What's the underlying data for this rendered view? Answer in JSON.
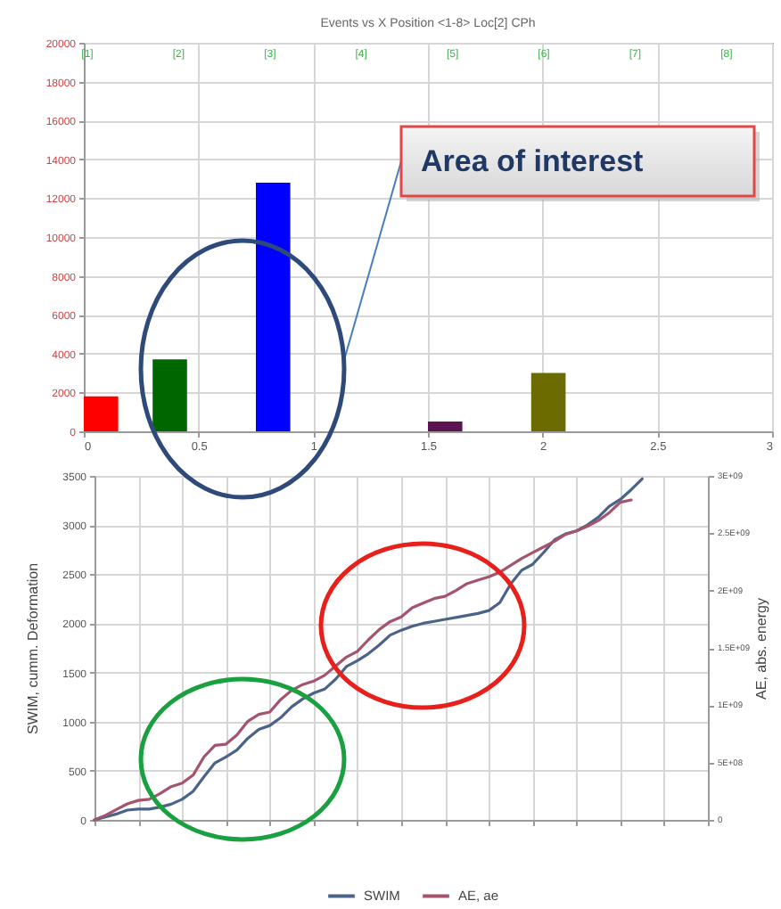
{
  "chart_data": [
    {
      "type": "histogram",
      "title": "Events vs X Position <1-8> Loc[2] CPh",
      "bins": [
        0,
        0.15,
        0.3,
        0.45,
        0.75,
        0.9,
        1.5,
        1.65,
        1.95,
        2.1
      ],
      "values": [
        1800,
        null,
        3700,
        null,
        12800,
        null,
        500,
        null,
        3000
      ],
      "colors": [
        "#ff0000",
        null,
        "#006600",
        null,
        "#0000ff",
        null,
        "#5c1450",
        null,
        "#6b6b00"
      ],
      "xlim": [
        0,
        3
      ],
      "xticks": [
        0,
        0.5,
        1,
        1.5,
        2,
        2.5,
        3
      ],
      "ylim": [
        0,
        20000
      ],
      "yticks": [
        0,
        2000,
        4000,
        6000,
        8000,
        10000,
        12000,
        14000,
        16000,
        18000,
        20000
      ],
      "grid": true,
      "annotations": [
        "Area of interest",
        "[1]",
        "[2]",
        "[3]",
        "[4]",
        "[5]",
        "[6]",
        "[7]",
        "[8]"
      ]
    },
    {
      "type": "line",
      "ylabel": "SWIM, cumm. Deformation",
      "y2label": "AE, abs. energy",
      "categories": [
        null,
        null,
        null,
        null,
        null,
        null,
        null,
        null,
        null,
        null,
        null,
        null,
        null,
        null,
        null,
        null,
        null,
        null,
        null,
        null,
        null,
        null,
        null,
        null,
        null,
        null,
        null,
        null,
        null,
        null,
        null,
        null,
        null,
        null,
        null,
        null,
        null,
        null,
        null,
        null,
        null,
        null,
        null,
        null,
        null,
        null,
        null,
        null,
        null,
        null,
        null,
        null,
        null,
        null,
        null,
        null,
        null
      ],
      "ylim": [
        0,
        3500
      ],
      "yticks": [
        0,
        500,
        1000,
        1500,
        2000,
        2500,
        3000,
        3500
      ],
      "y2lim": [
        0,
        3000000000.0
      ],
      "y2ticks": [
        0,
        {
          "value": 500000000.0,
          "label": "5E+08"
        },
        {
          "value": 1000000000.0,
          "label": "1E+09"
        },
        {
          "value": 1500000000.0,
          "label": "1.5E+09"
        },
        {
          "value": 2000000000.0,
          "label": "2E+09"
        },
        {
          "value": 2500000000.0,
          "label": "2.5E+09"
        },
        {
          "value": 3000000000.0,
          "label": "3E+09"
        }
      ],
      "grid": true,
      "legend": "bottom",
      "series": [
        {
          "name": "SWIM",
          "color": "#4b6389",
          "values": [
            0,
            30,
            60,
            100,
            110,
            110,
            130,
            160,
            210,
            290,
            440,
            580,
            640,
            710,
            830,
            920,
            960,
            1040,
            1150,
            1230,
            1290,
            1330,
            1430,
            1560,
            1620,
            1690,
            1780,
            1880,
            1930,
            1970,
            2000,
            2020,
            2040,
            2060,
            2080,
            2100,
            2130,
            2210,
            2400,
            2540,
            2600,
            2720,
            2850,
            2910,
            2940,
            3000,
            3080,
            3190,
            3260,
            3360,
            3470,
            null,
            null,
            null,
            null,
            null,
            null
          ]
        },
        {
          "name": "AE, ae",
          "color": "#a4546b",
          "axis": "y2",
          "values": [
            0,
            40000000.0,
            90000000.0,
            140000000.0,
            170000000.0,
            180000000.0,
            230000000.0,
            290000000.0,
            320000000.0,
            390000000.0,
            550000000.0,
            650000000.0,
            660000000.0,
            740000000.0,
            860000000.0,
            920000000.0,
            940000000.0,
            1050000000.0,
            1130000000.0,
            1180000000.0,
            1210000000.0,
            1260000000.0,
            1340000000.0,
            1420000000.0,
            1470000000.0,
            1570000000.0,
            1660000000.0,
            1730000000.0,
            1770000000.0,
            1850000000.0,
            1890000000.0,
            1930000000.0,
            1950000000.0,
            2000000000.0,
            2060000000.0,
            2090000000.0,
            2120000000.0,
            2160000000.0,
            2220000000.0,
            2280000000.0,
            2330000000.0,
            2380000000.0,
            2430000000.0,
            2490000000.0,
            2520000000.0,
            2560000000.0,
            2610000000.0,
            2680000000.0,
            2770000000.0,
            2790000000.0,
            null,
            null,
            null,
            null,
            null,
            null,
            null
          ]
        }
      ]
    }
  ]
}
